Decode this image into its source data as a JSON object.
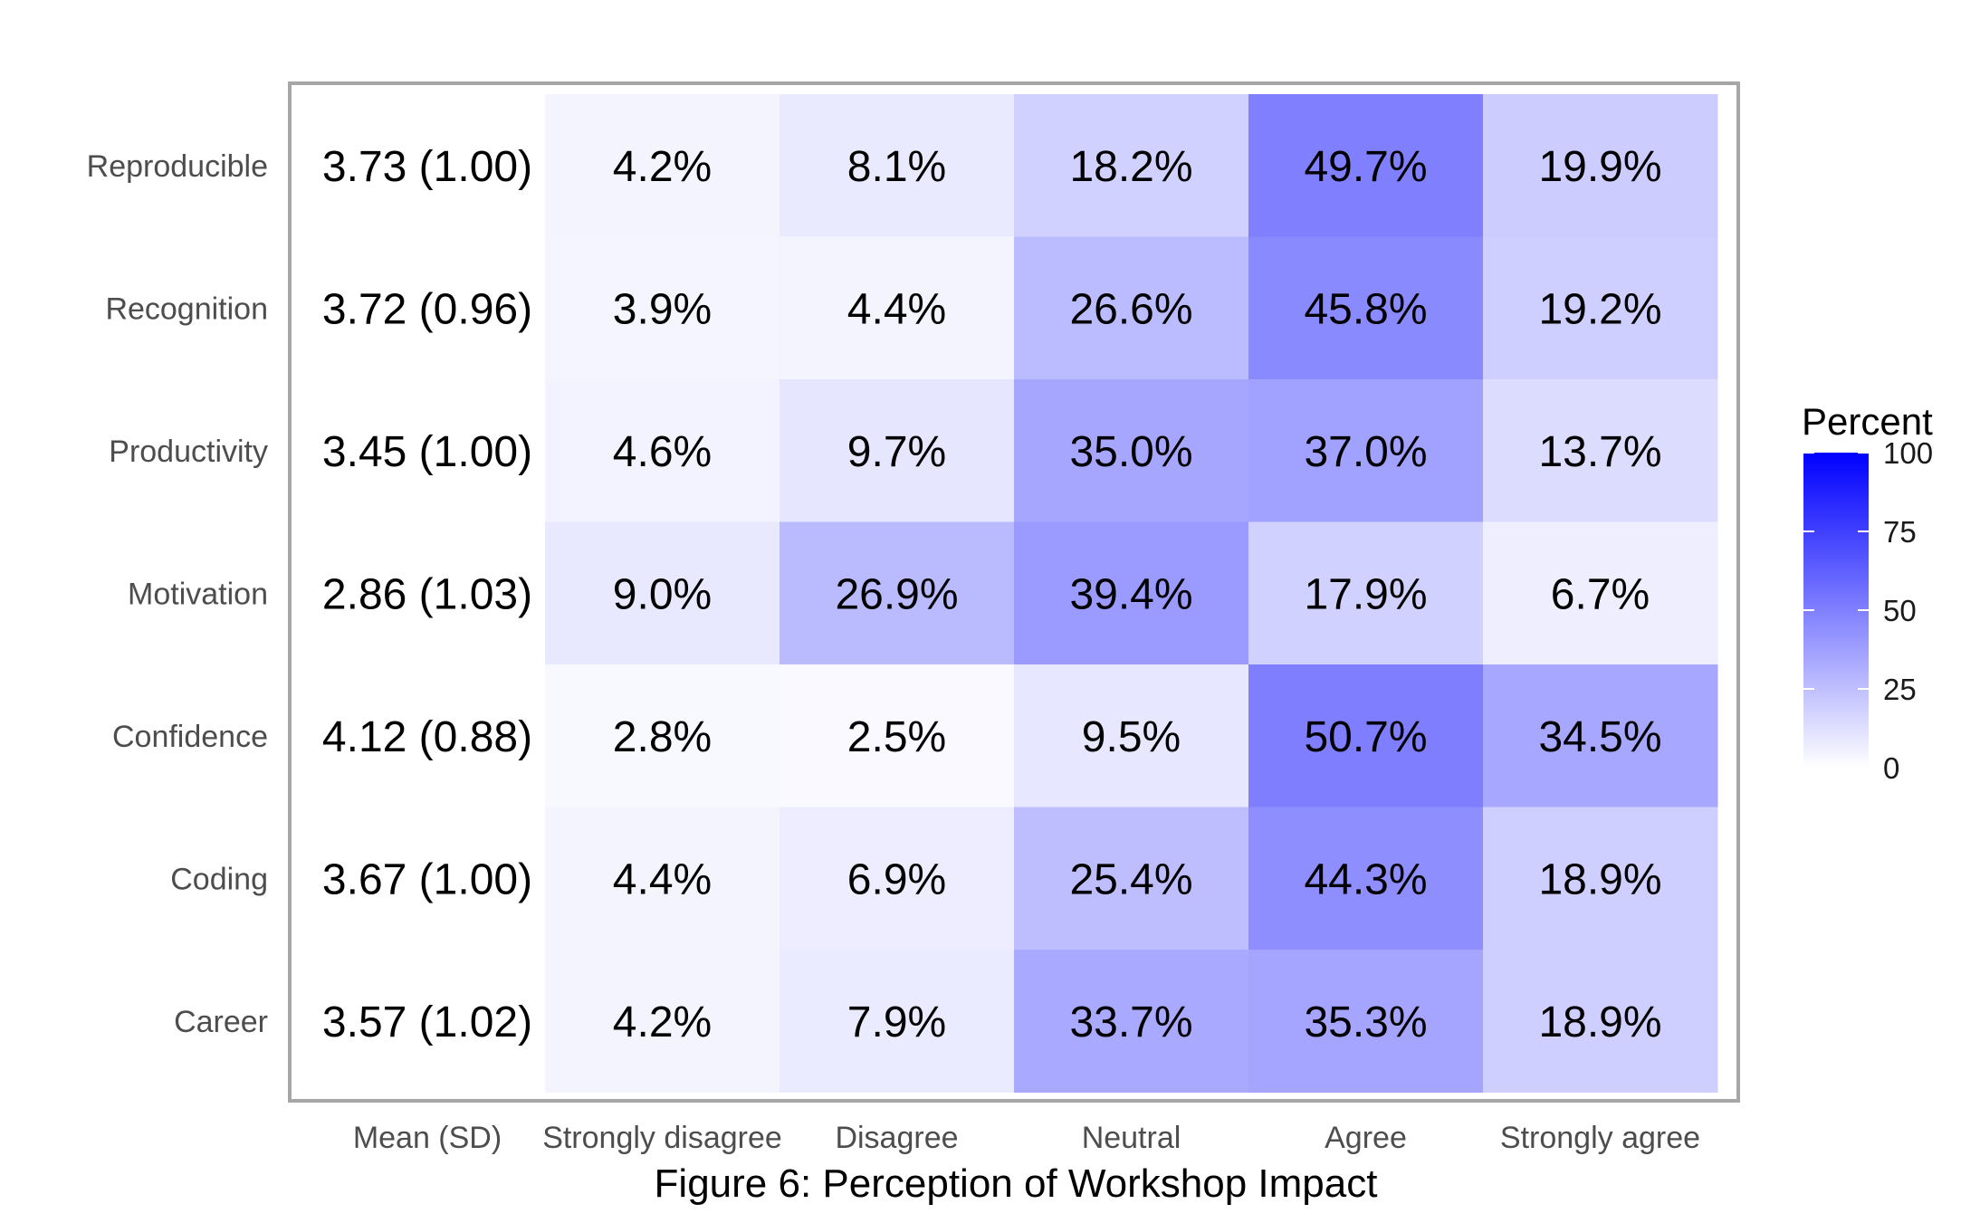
{
  "chart_data": {
    "type": "heatmap",
    "caption": "Figure 6: Perception of Workshop Impact",
    "rows": [
      "Reproducible",
      "Recognition",
      "Productivity",
      "Motivation",
      "Confidence",
      "Coding",
      "Career"
    ],
    "mean_header": "Mean (SD)",
    "columns": [
      "Strongly disagree",
      "Disagree",
      "Neutral",
      "Agree",
      "Strongly agree"
    ],
    "mean_sd": [
      "3.73 (1.00)",
      "3.72 (0.96)",
      "3.45 (1.00)",
      "2.86 (1.03)",
      "4.12 (0.88)",
      "3.67 (1.00)",
      "3.57 (1.02)"
    ],
    "values": [
      [
        4.2,
        8.1,
        18.2,
        49.7,
        19.9
      ],
      [
        3.9,
        4.4,
        26.6,
        45.8,
        19.2
      ],
      [
        4.6,
        9.7,
        35.0,
        37.0,
        13.7
      ],
      [
        9.0,
        26.9,
        39.4,
        17.9,
        6.7
      ],
      [
        2.8,
        2.5,
        9.5,
        50.7,
        34.5
      ],
      [
        4.4,
        6.9,
        25.4,
        44.3,
        18.9
      ],
      [
        4.2,
        7.9,
        33.7,
        35.3,
        18.9
      ]
    ],
    "value_labels": [
      [
        "4.2%",
        "8.1%",
        "18.2%",
        "49.7%",
        "19.9%"
      ],
      [
        "3.9%",
        "4.4%",
        "26.6%",
        "45.8%",
        "19.2%"
      ],
      [
        "4.6%",
        "9.7%",
        "35.0%",
        "37.0%",
        "13.7%"
      ],
      [
        "9.0%",
        "26.9%",
        "39.4%",
        "17.9%",
        "6.7%"
      ],
      [
        "2.8%",
        "2.5%",
        "9.5%",
        "50.7%",
        "34.5%"
      ],
      [
        "4.4%",
        "6.9%",
        "25.4%",
        "44.3%",
        "18.9%"
      ],
      [
        "4.2%",
        "7.9%",
        "33.7%",
        "35.3%",
        "18.9%"
      ]
    ],
    "legend": {
      "title": "Percent",
      "range": [
        0,
        100
      ],
      "ticks": [
        "0",
        "25",
        "50",
        "75",
        "100"
      ],
      "low_color": "#ffffff",
      "high_color": "#0000ff"
    },
    "legend_placement": "right",
    "grid": false
  }
}
